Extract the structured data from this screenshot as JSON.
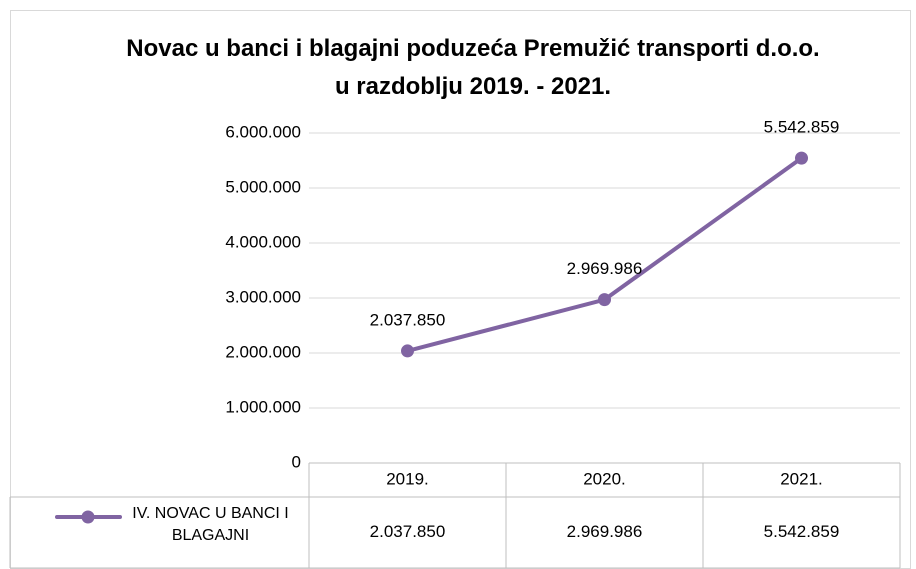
{
  "chart_data": {
    "type": "line",
    "title": "Novac u banci i blagajni poduzeća Premužić transporti d.o.o. u razdoblju 2019. - 2021.",
    "categories": [
      "2019.",
      "2020.",
      "2021."
    ],
    "series": [
      {
        "name": "IV. NOVAC U BANCI I BLAGAJNI",
        "color": "#8064a2",
        "values": [
          2037850,
          2969986,
          5542859
        ],
        "value_labels": [
          "2.037.850",
          "2.969.986",
          "5.542.859"
        ]
      }
    ],
    "ylim": [
      0,
      6000000
    ],
    "yticks": [
      0,
      {
        "value": 1000000,
        "label": "1.000.000"
      },
      {
        "value": 2000000,
        "label": "2.000.000"
      },
      {
        "value": 3000000,
        "label": "3.000.000"
      },
      {
        "value": 4000000,
        "label": "4.000.000"
      },
      {
        "value": 5000000,
        "label": "5.000.000"
      },
      {
        "value": 6000000,
        "label": "6.000.000"
      }
    ],
    "grid": true,
    "data_table": true
  }
}
